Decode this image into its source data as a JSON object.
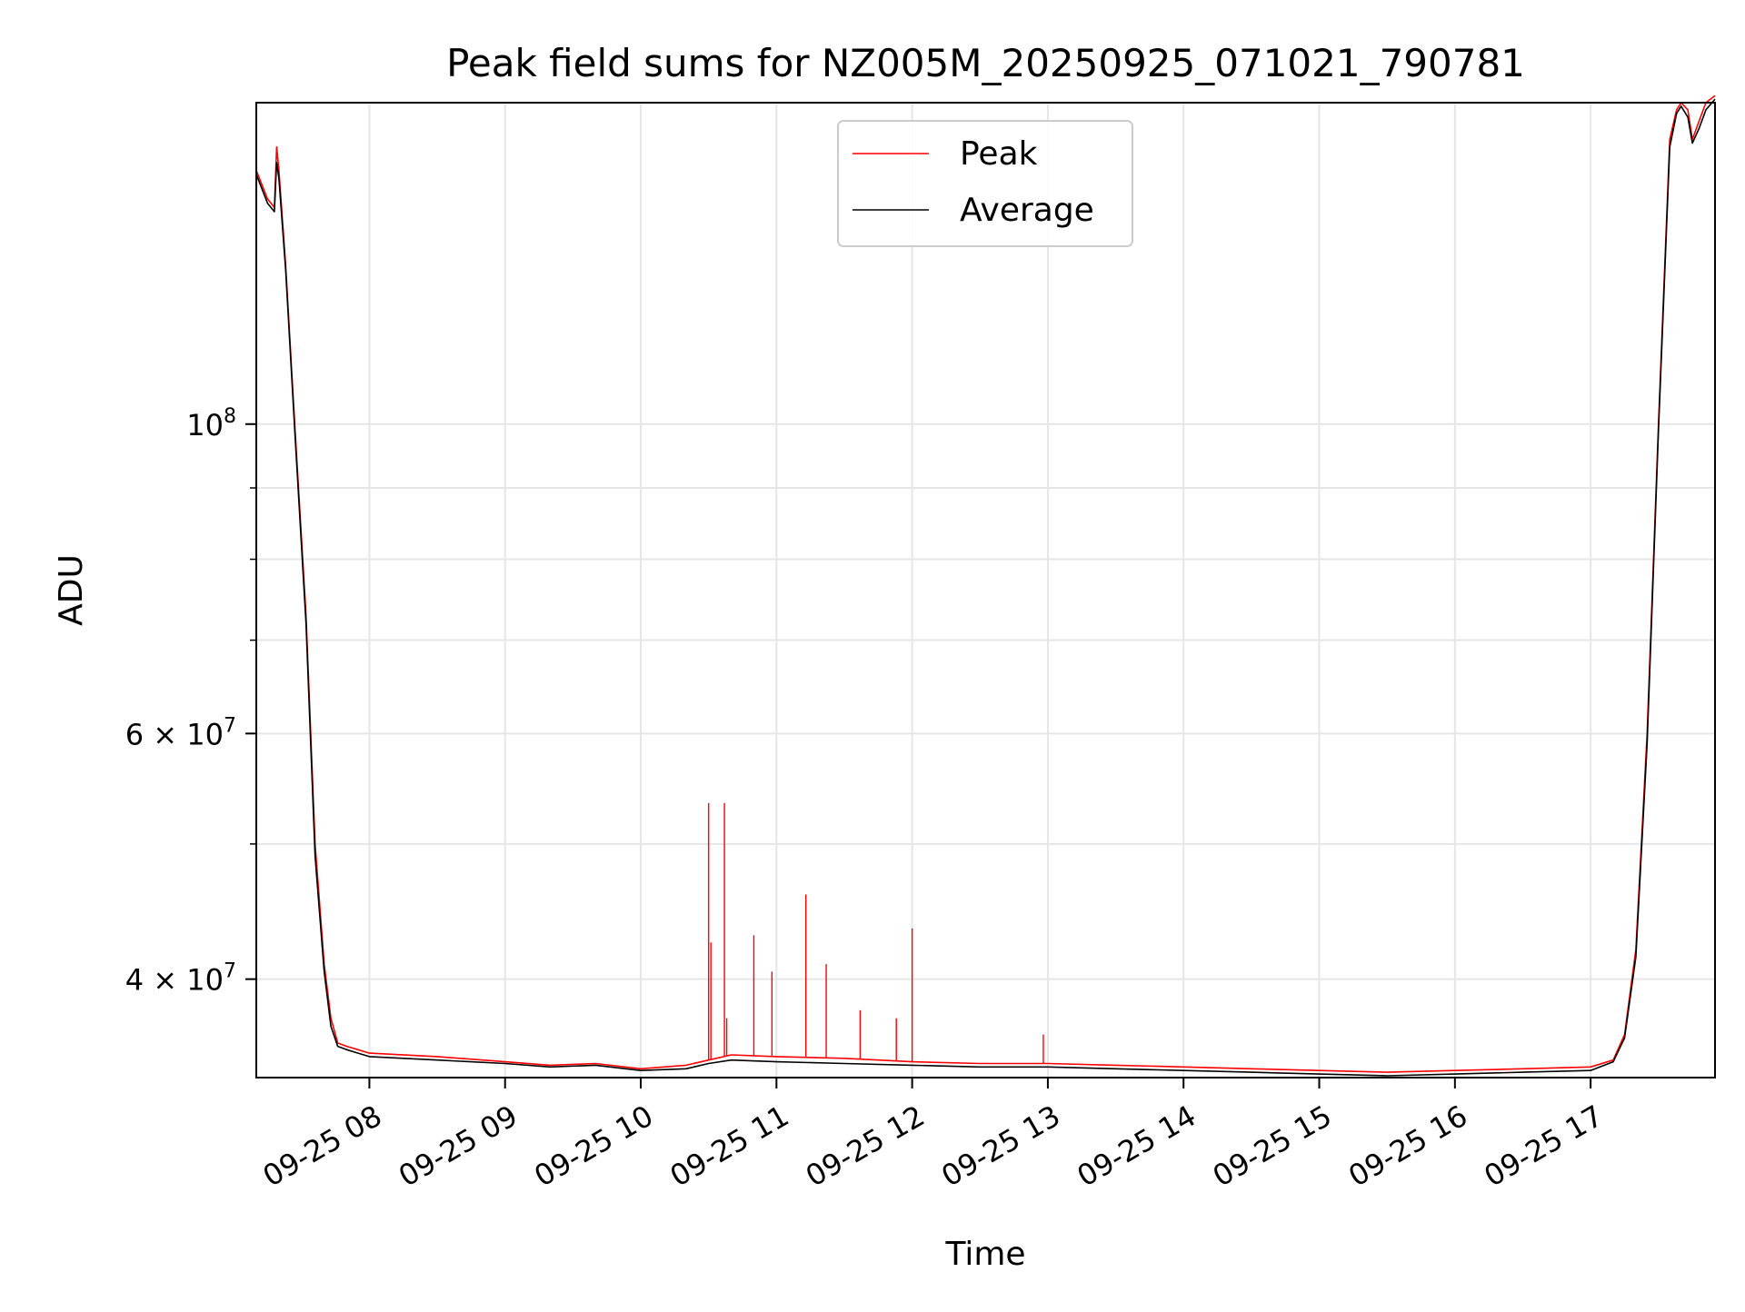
{
  "chart_data": {
    "type": "line",
    "title": "Peak field sums for NZ005M_20250925_071021_790781",
    "xlabel": "Time",
    "ylabel": "ADU",
    "y_scale": "log",
    "xlim": [
      "09-25 07:10",
      "09-25 17:55"
    ],
    "ylim": [
      34000000,
      170000000
    ],
    "x_ticks": [
      "09-25 08",
      "09-25 09",
      "09-25 10",
      "09-25 11",
      "09-25 12",
      "09-25 13",
      "09-25 14",
      "09-25 15",
      "09-25 16",
      "09-25 17"
    ],
    "x_tick_times": [
      "09-25 08:00",
      "09-25 09:00",
      "09-25 10:00",
      "09-25 11:00",
      "09-25 12:00",
      "09-25 13:00",
      "09-25 14:00",
      "09-25 15:00",
      "09-25 16:00",
      "09-25 17:00"
    ],
    "y_ticks": [
      {
        "value": 100000000,
        "label_base": "10",
        "label_exp": "8"
      },
      {
        "value": 60000000,
        "label_base": "6 × 10",
        "label_exp": "7"
      },
      {
        "value": 40000000,
        "label_base": "4 × 10",
        "label_exp": "7"
      }
    ],
    "y_minor_ticks": [
      50000000,
      70000000,
      80000000,
      90000000
    ],
    "grid": true,
    "legend_position": "top-center",
    "series": [
      {
        "name": "Peak",
        "color": "#ff0000",
        "x": [
          "09-25 07:10",
          "09-25 07:15",
          "09-25 07:18",
          "09-25 07:19",
          "09-25 07:20",
          "09-25 07:23",
          "09-25 07:27",
          "09-25 07:32",
          "09-25 07:36",
          "09-25 07:40",
          "09-25 07:43",
          "09-25 07:46",
          "09-25 07:50",
          "09-25 07:55",
          "09-25 08:00",
          "09-25 08:30",
          "09-25 09:00",
          "09-25 09:20",
          "09-25 09:40",
          "09-25 10:00",
          "09-25 10:20",
          "09-25 10:30",
          "09-25 10:40",
          "09-25 11:00",
          "09-25 11:30",
          "09-25 12:00",
          "09-25 12:30",
          "09-25 13:00",
          "09-25 13:30",
          "09-25 14:00",
          "09-25 14:30",
          "09-25 15:00",
          "09-25 15:30",
          "09-25 16:00",
          "09-25 16:30",
          "09-25 17:00",
          "09-25 17:10",
          "09-25 17:15",
          "09-25 17:20",
          "09-25 17:25",
          "09-25 17:30",
          "09-25 17:35",
          "09-25 17:38",
          "09-25 17:40",
          "09-25 17:43",
          "09-25 17:45",
          "09-25 17:48",
          "09-25 17:51",
          "09-25 17:55"
        ],
        "values": [
          152000000,
          145000000,
          143000000,
          158000000,
          152000000,
          130000000,
          100000000,
          73000000,
          50000000,
          41000000,
          37500000,
          36000000,
          35800000,
          35600000,
          35400000,
          35200000,
          34900000,
          34700000,
          34800000,
          34500000,
          34700000,
          35000000,
          35300000,
          35200000,
          35100000,
          34900000,
          34800000,
          34800000,
          34700000,
          34600000,
          34500000,
          34400000,
          34300000,
          34400000,
          34500000,
          34600000,
          35000000,
          36500000,
          42000000,
          60000000,
          100000000,
          160000000,
          168000000,
          170000000,
          168000000,
          160000000,
          165000000,
          170000000,
          172000000
        ],
        "spikes": [
          {
            "x": "09-25 10:30",
            "value": 53500000
          },
          {
            "x": "09-25 10:31",
            "value": 42500000
          },
          {
            "x": "09-25 10:37",
            "value": 53500000
          },
          {
            "x": "09-25 10:38",
            "value": 37500000
          },
          {
            "x": "09-25 10:50",
            "value": 43000000
          },
          {
            "x": "09-25 10:58",
            "value": 40500000
          },
          {
            "x": "09-25 11:13",
            "value": 46000000
          },
          {
            "x": "09-25 11:22",
            "value": 41000000
          },
          {
            "x": "09-25 11:37",
            "value": 38000000
          },
          {
            "x": "09-25 11:53",
            "value": 37500000
          },
          {
            "x": "09-25 12:00",
            "value": 43500000
          },
          {
            "x": "09-25 12:58",
            "value": 36500000
          }
        ]
      },
      {
        "name": "Average",
        "color": "#000000",
        "x": [
          "09-25 07:10",
          "09-25 07:15",
          "09-25 07:18",
          "09-25 07:19",
          "09-25 07:20",
          "09-25 07:23",
          "09-25 07:27",
          "09-25 07:32",
          "09-25 07:36",
          "09-25 07:40",
          "09-25 07:43",
          "09-25 07:46",
          "09-25 07:50",
          "09-25 07:55",
          "09-25 08:00",
          "09-25 08:30",
          "09-25 09:00",
          "09-25 09:20",
          "09-25 09:40",
          "09-25 10:00",
          "09-25 10:20",
          "09-25 10:30",
          "09-25 10:40",
          "09-25 11:00",
          "09-25 11:30",
          "09-25 12:00",
          "09-25 12:30",
          "09-25 13:00",
          "09-25 13:30",
          "09-25 14:00",
          "09-25 14:30",
          "09-25 15:00",
          "09-25 15:30",
          "09-25 16:00",
          "09-25 16:30",
          "09-25 17:00",
          "09-25 17:10",
          "09-25 17:15",
          "09-25 17:20",
          "09-25 17:25",
          "09-25 17:30",
          "09-25 17:35",
          "09-25 17:38",
          "09-25 17:40",
          "09-25 17:43",
          "09-25 17:45",
          "09-25 17:48",
          "09-25 17:51",
          "09-25 17:55"
        ],
        "values": [
          151000000,
          144000000,
          142000000,
          154000000,
          150000000,
          129000000,
          99000000,
          72000000,
          49000000,
          40500000,
          37000000,
          35800000,
          35600000,
          35400000,
          35200000,
          35000000,
          34800000,
          34600000,
          34700000,
          34400000,
          34500000,
          34800000,
          35000000,
          34900000,
          34800000,
          34700000,
          34600000,
          34600000,
          34500000,
          34400000,
          34300000,
          34200000,
          34100000,
          34200000,
          34300000,
          34400000,
          34900000,
          36300000,
          41500000,
          59000000,
          99000000,
          158000000,
          167000000,
          169000000,
          166000000,
          159000000,
          163000000,
          168000000,
          171000000
        ]
      }
    ]
  }
}
